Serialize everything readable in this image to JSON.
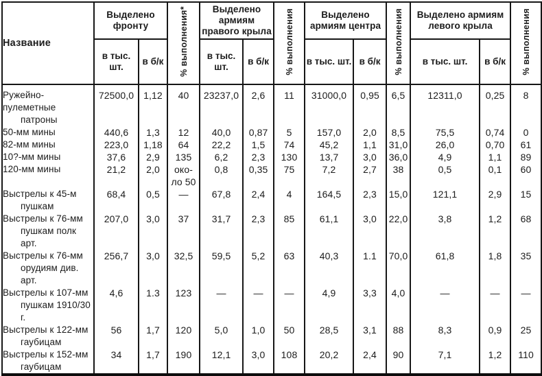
{
  "table": {
    "name_header": "Название",
    "col_groups": [
      {
        "label": "Выделено фронту",
        "subs": [
          "в тыс. шт.",
          "в б/к"
        ]
      },
      {
        "label": "% выполнения*"
      },
      {
        "label": "Выделено армиям правого крыла",
        "subs": [
          "в тыс. шт.",
          "в б/к"
        ]
      },
      {
        "label": "% выполнения"
      },
      {
        "label": "Выделено армиям центра",
        "subs": [
          "в тыс. шт.",
          "в б/к"
        ]
      },
      {
        "label": "% выполнения"
      },
      {
        "label": "Выделено армиям левого крыла",
        "subs": [
          "в тыс. шт.",
          "в б/к"
        ]
      },
      {
        "label": "% выполнения"
      }
    ],
    "rows": [
      {
        "name": [
          "Ружейно-пулеметные",
          "патроны"
        ],
        "values": [
          "72500,0",
          "1,12",
          "40",
          "23237,0",
          "2,6",
          "11",
          "31000,0",
          "0,95",
          "6,5",
          "12311,0",
          "0,25",
          "8"
        ]
      },
      {
        "name": [
          "50-мм мины"
        ],
        "values": [
          "440,6",
          "1,3",
          "12",
          "40,0",
          "0,87",
          "5",
          "157,0",
          "2,0",
          "8,5",
          "75,5",
          "0,74",
          "0"
        ]
      },
      {
        "name": [
          "82-мм мины"
        ],
        "values": [
          "223,0",
          "1,18",
          "64",
          "22,2",
          "1,5",
          "74",
          "45,2",
          "1,1",
          "31,0",
          "26,0",
          "0,70",
          "61"
        ]
      },
      {
        "name": [
          "10?-мм мины"
        ],
        "values": [
          "37,6",
          "2,9",
          "135",
          "6,2",
          "2,3",
          "130",
          "13,7",
          "3,0",
          "36,0",
          "4,9",
          "1,1",
          "89"
        ]
      },
      {
        "name": [
          "120-мм мины"
        ],
        "values": [
          "21,2",
          "2,0",
          "око-\nло 50",
          "0,8",
          "0,35",
          "75",
          "7,2",
          "2,7",
          "38",
          "0,5",
          "0,1",
          "60"
        ]
      },
      {
        "name": [
          "Выстрелы к 45-м",
          "пушкам"
        ],
        "values": [
          "68,4",
          "0,5",
          "—",
          "67,8",
          "2,4",
          "4",
          "164,5",
          "2,3",
          "15,0",
          "121,1",
          "2,9",
          "15"
        ]
      },
      {
        "name": [
          "Выстрелы к 76-мм",
          "пушкам полк арт."
        ],
        "values": [
          "207,0",
          "3,0",
          "37",
          "31,7",
          "2,3",
          "85",
          "61,1",
          "3,0",
          "22,0",
          "3,8",
          "1,2",
          "68"
        ]
      },
      {
        "name": [
          "Выстрелы к 76-мм",
          "орудиям див. арт."
        ],
        "values": [
          "256,7",
          "3,0",
          "32,5",
          "59,5",
          "5,2",
          "63",
          "40,3",
          "1.1",
          "70,0",
          "61,8",
          "1,8",
          "35"
        ]
      },
      {
        "name": [
          "Выстрелы к 107-мм",
          "пушкам 1910/30 г."
        ],
        "values": [
          "4,6",
          "1.3",
          "123",
          "—",
          "—",
          "—",
          "4,9",
          "3,3",
          "4,0",
          "—",
          "—",
          "—"
        ]
      },
      {
        "name": [
          "Выстрелы к 122-мм",
          "гаубицам"
        ],
        "values": [
          "56",
          "1,7",
          "120",
          "5,0",
          "1,0",
          "50",
          "28,5",
          "3,1",
          "88",
          "8,3",
          "0,9",
          "25"
        ]
      },
      {
        "name": [
          "Выстрелы к 152-мм",
          "гаубицам"
        ],
        "values": [
          "34",
          "1,7",
          "190",
          "12,1",
          "3,0",
          "108",
          "20,2",
          "2,4",
          "90",
          "7,1",
          "1,2",
          "110"
        ]
      }
    ]
  },
  "colors": {
    "border": "#161616",
    "text": "#1b1b1b",
    "background": "#ffffff"
  }
}
